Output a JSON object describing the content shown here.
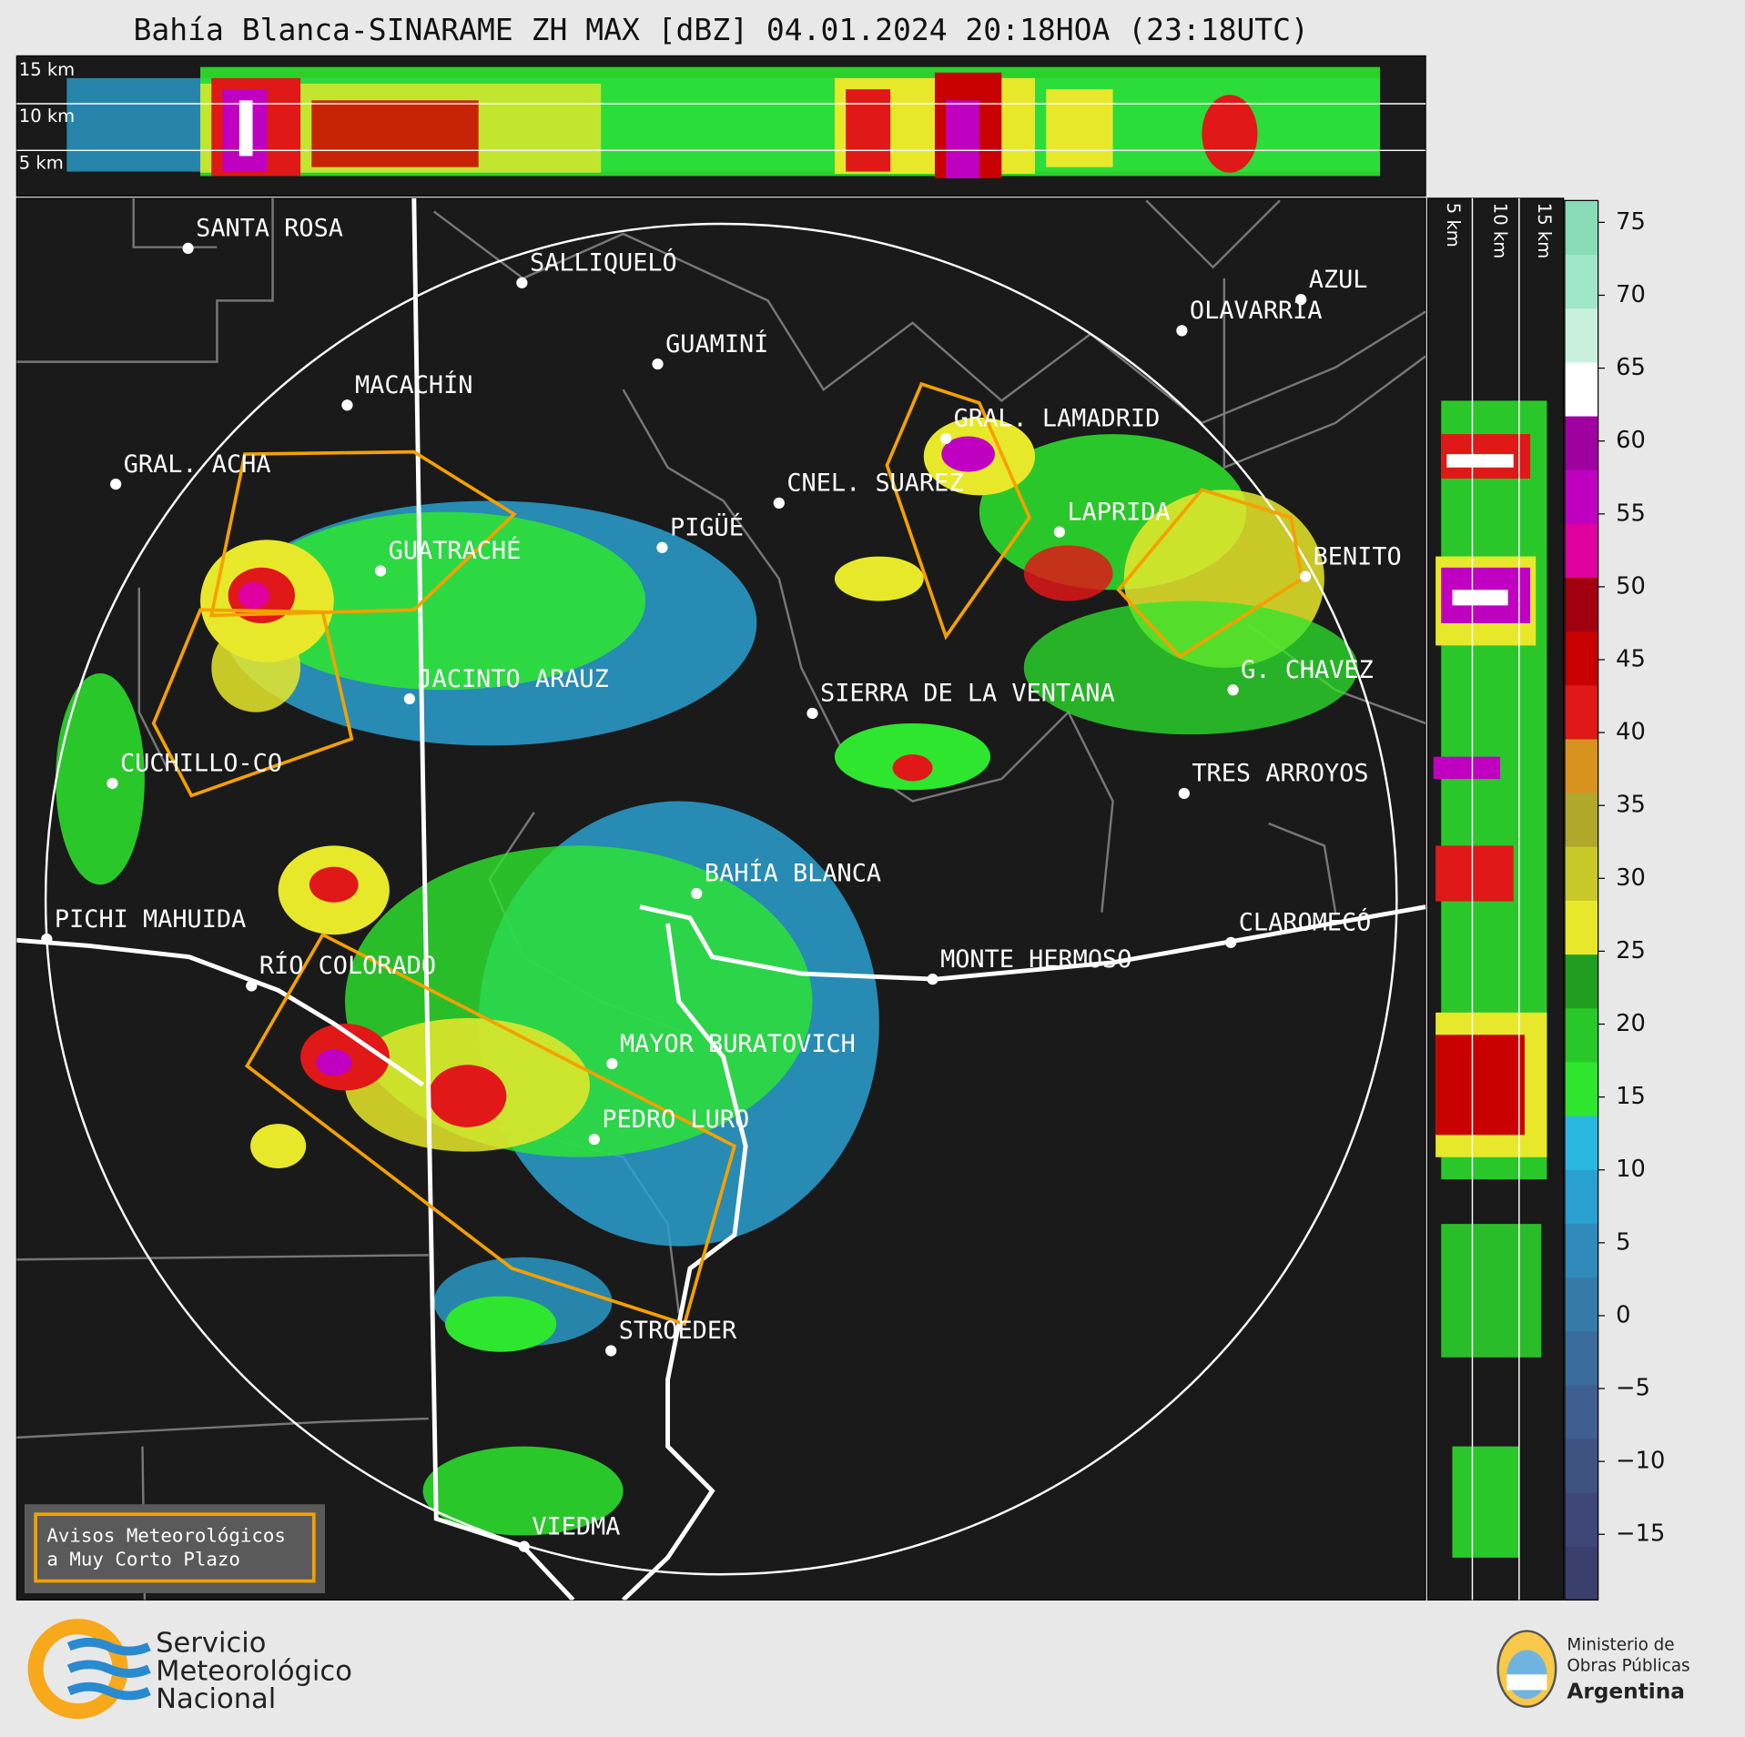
{
  "title": "Bahía Blanca-SINARAME ZH MAX [dBZ] 04.01.2024 20:18HOA (23:18UTC)",
  "top_panel": {
    "labels": [
      "15 km",
      "10 km",
      "5 km"
    ]
  },
  "side_panel": {
    "labels": [
      "5 km",
      "10 km",
      "15 km"
    ]
  },
  "colorbar": {
    "lim": [
      -19.5,
      76.5
    ],
    "ticks": [
      75,
      70,
      65,
      60,
      55,
      50,
      45,
      40,
      35,
      30,
      25,
      20,
      15,
      10,
      5,
      0,
      {
        "value": -5,
        "label": "−5"
      },
      {
        "value": -10,
        "label": "−10"
      },
      {
        "value": -15,
        "label": "−15"
      }
    ],
    "colors": [
      "#3b3f6e",
      "#3d4878",
      "#3f5383",
      "#3e5f90",
      "#3a6d9d",
      "#357baa",
      "#2f8bbb",
      "#2aa0d0",
      "#2bb8e0",
      "#2ee62e",
      "#27c827",
      "#1f9e1f",
      "#e8e82a",
      "#c8c82a",
      "#b0a82a",
      "#d8921e",
      "#e01818",
      "#c80000",
      "#a00010",
      "#e000a0",
      "#c000c0",
      "#a000a0",
      "#ffffff",
      "#c8f0dc",
      "#a0e6c8",
      "#88dcb8"
    ]
  },
  "cities": [
    "SANTA ROSA",
    "SALLIQUELÓ",
    "GUAMINÍ",
    "MACACHÍN",
    "GRAL. ACHA",
    "AZUL",
    "OLAVARRÍA",
    "GRAL. LAMADRID",
    "CNEL. SUAREZ",
    "LAPRIDA",
    "PIGÜÉ",
    "GUATRACHÉ",
    "BENITO",
    "JACINTO ARAUZ",
    "G. CHAVEZ",
    "SIERRA DE LA VENTANA",
    "CUCHILLO-CO",
    "TRES ARROYOS",
    "BAHÍA BLANCA",
    "PICHI MAHUIDA",
    "CLAROMECÓ",
    "RÍO COLORADO",
    "MONTE HERMOSO",
    "MAYOR BURATOVICH",
    "PEDRO LURO",
    "STROEDER",
    "VIEDMA"
  ],
  "warning_box": [
    "Avisos Meteorológicos",
    "a Muy Corto Plazo"
  ],
  "smn_logo": [
    "Servicio",
    "Meteorológico",
    "Nacional"
  ],
  "ministry_logo": [
    "Ministerio de",
    "Obras Públicas",
    "Argentina"
  ]
}
